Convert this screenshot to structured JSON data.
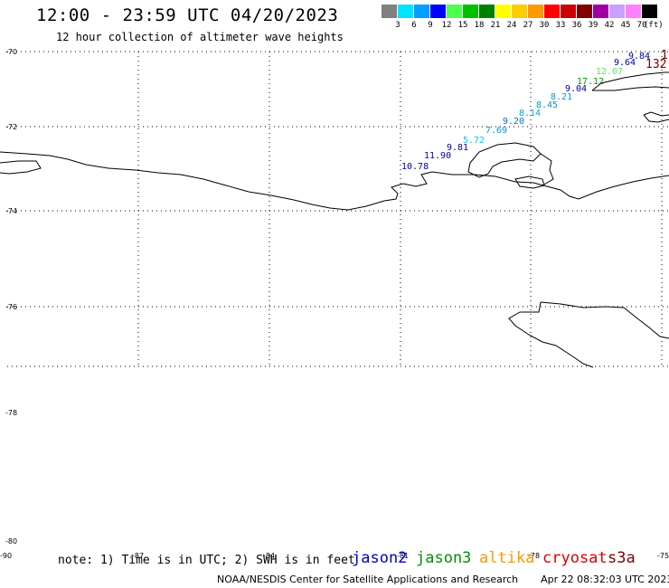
{
  "header": {
    "title": "12:00 - 23:59 UTC 04/20/2023",
    "subtitle": "12 hour collection of altimeter wave heights"
  },
  "colorbar": {
    "units": "(ft)",
    "labels": [
      "3",
      "6",
      "9",
      "12",
      "15",
      "18",
      "21",
      "24",
      "27",
      "30",
      "33",
      "36",
      "39",
      "42",
      "45",
      "70"
    ],
    "colors": [
      "#808080",
      "#00e5ff",
      "#00a0ff",
      "#0000ff",
      "#4cff4c",
      "#00c000",
      "#008000",
      "#ffff00",
      "#ffcc00",
      "#ff9900",
      "#ff0000",
      "#cc0000",
      "#800000",
      "#a000a0",
      "#c8a0ff",
      "#ff80ff",
      "#000000"
    ]
  },
  "axes": {
    "lat_labels": [
      "-70",
      "-72",
      "-74",
      "-76",
      "-78",
      "-80",
      "-90"
    ],
    "lon_labels": [
      "-87",
      "-84",
      "-81",
      "-78",
      "-75"
    ]
  },
  "wave_heights": [
    {
      "text": "10.78",
      "color": "#0000aa"
    },
    {
      "text": "11.90",
      "color": "#0000aa"
    },
    {
      "text": "9.81",
      "color": "#0000aa"
    },
    {
      "text": "5.72",
      "color": "#00ccee"
    },
    {
      "text": "7.69",
      "color": "#0099dd"
    },
    {
      "text": "9.20",
      "color": "#0077cc"
    },
    {
      "text": "8.14",
      "color": "#00aadd"
    },
    {
      "text": "8.45",
      "color": "#0099dd"
    },
    {
      "text": "8.21",
      "color": "#0099dd"
    },
    {
      "text": "9.04",
      "color": "#0000aa"
    },
    {
      "text": "17.12",
      "color": "#00a000"
    },
    {
      "text": "12.07",
      "color": "#66dd66"
    },
    {
      "text": "9.64",
      "color": "#0000aa"
    },
    {
      "text": "9.84",
      "color": "#0000aa"
    },
    {
      "text": "1",
      "color": "#800000"
    },
    {
      "text": "132",
      "color": "#800000"
    }
  ],
  "footer": {
    "note": "note: 1) Time is in UTC; 2) SWH is in feet",
    "satellites": [
      {
        "name": "jason2",
        "color": "#0000cc"
      },
      {
        "name": "jason3",
        "color": "#009000"
      },
      {
        "name": "altika",
        "color": "#ff9900"
      },
      {
        "name": "cryosat",
        "color": "#dd0000"
      },
      {
        "name": "s3a",
        "color": "#800000"
      }
    ],
    "credit": "NOAA/NESDIS Center for Satellite Applications and Research",
    "timestamp": "Apr 22 08:32:03 UTC 2023"
  }
}
